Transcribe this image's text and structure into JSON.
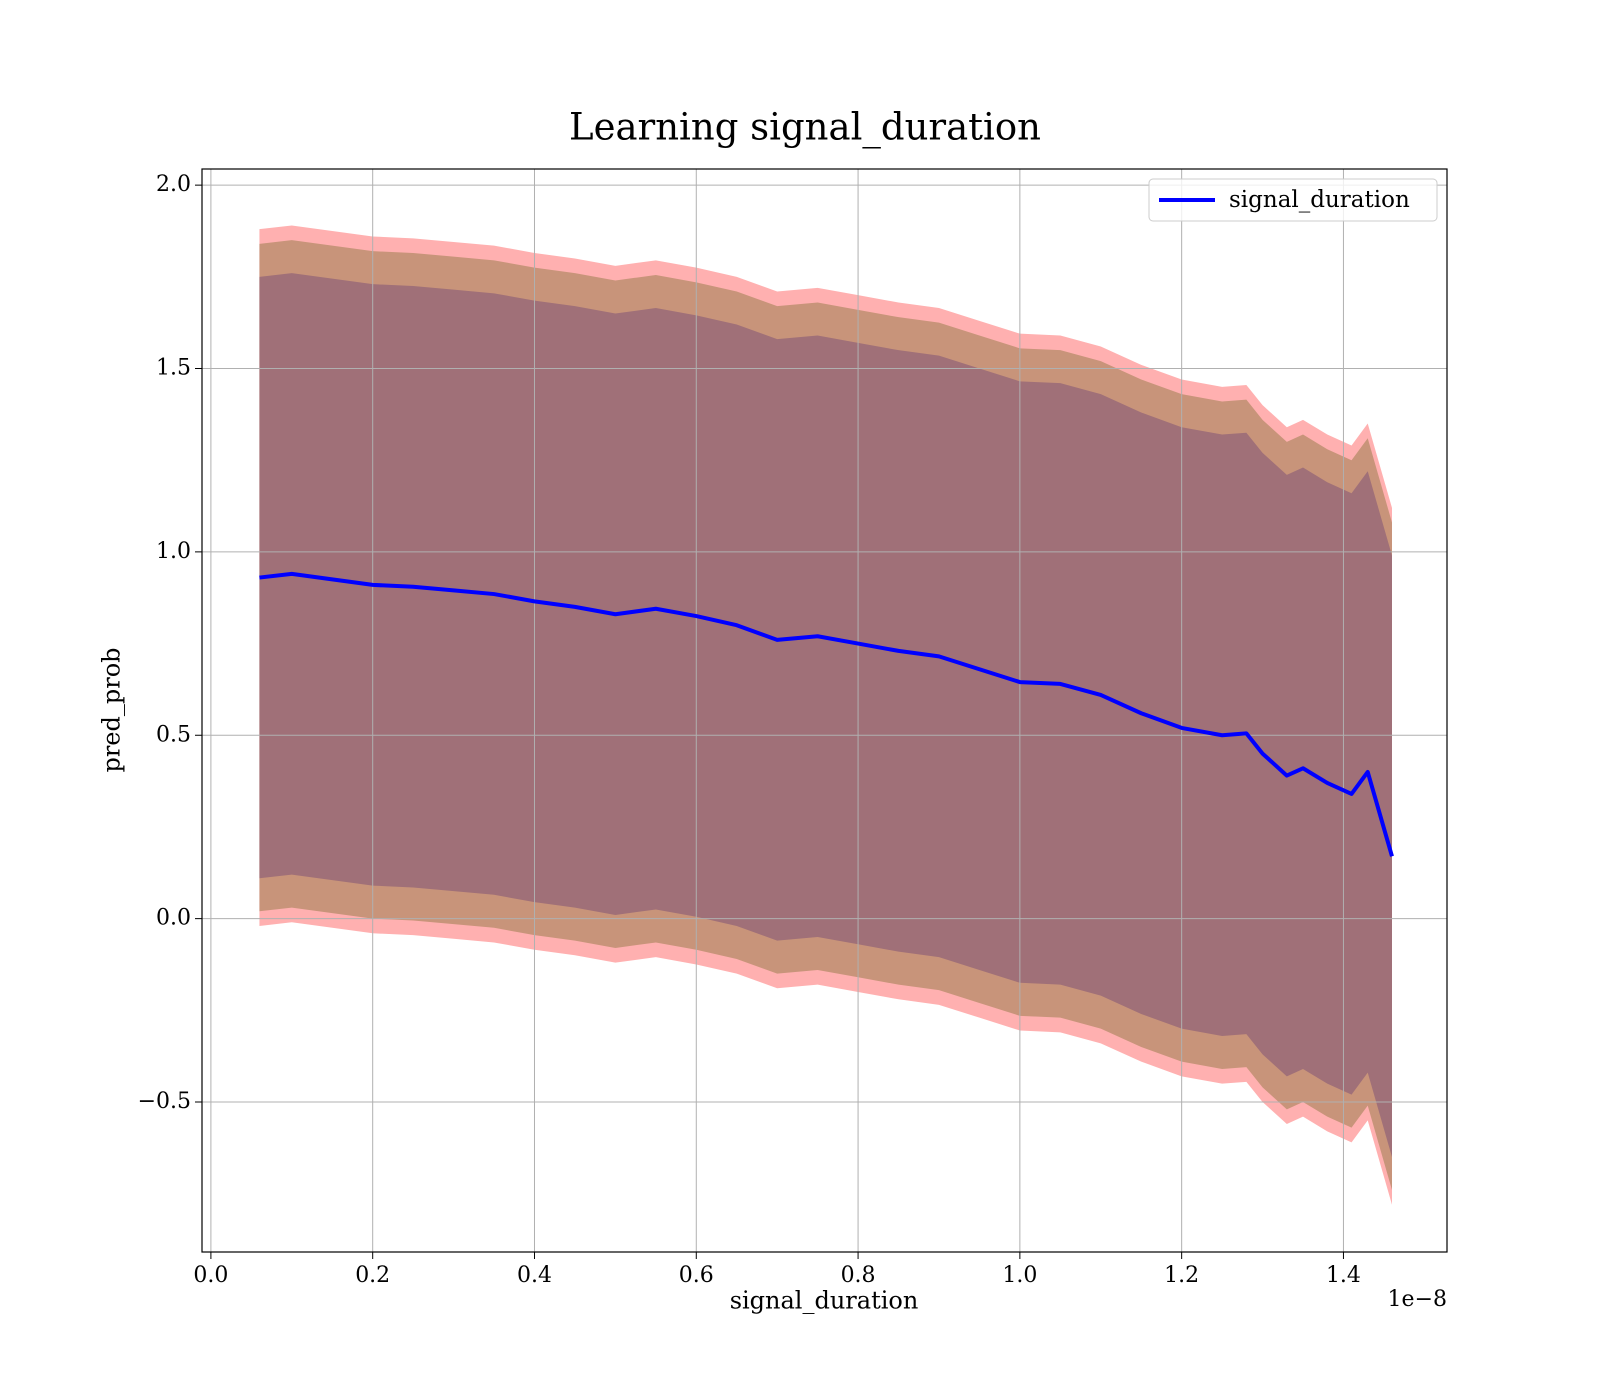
{
  "chart_data": {
    "type": "line",
    "title": "Learning signal_duration",
    "xlabel": "signal_duration",
    "ylabel": "pred_prob",
    "x_offset_label": "1e−8",
    "x": [
      0.06,
      0.1,
      0.15,
      0.2,
      0.25,
      0.3,
      0.35,
      0.4,
      0.45,
      0.5,
      0.55,
      0.6,
      0.65,
      0.7,
      0.75,
      0.8,
      0.85,
      0.9,
      0.95,
      1.0,
      1.05,
      1.1,
      1.15,
      1.2,
      1.25,
      1.28,
      1.3,
      1.33,
      1.35,
      1.38,
      1.41,
      1.43,
      1.46
    ],
    "series": [
      {
        "name": "signal_duration",
        "color": "#0000ff",
        "values": [
          0.93,
          0.94,
          0.925,
          0.91,
          0.905,
          0.895,
          0.885,
          0.865,
          0.85,
          0.83,
          0.845,
          0.825,
          0.8,
          0.76,
          0.77,
          0.75,
          0.73,
          0.715,
          0.68,
          0.645,
          0.64,
          0.61,
          0.56,
          0.52,
          0.5,
          0.505,
          0.45,
          0.39,
          0.41,
          0.37,
          0.34,
          0.4,
          0.17
        ]
      }
    ],
    "bands": [
      {
        "color": "#ffb0b0",
        "error": 0.95
      },
      {
        "color": "#c8947a",
        "error": 0.91
      },
      {
        "color": "#a07078",
        "error": 0.82
      }
    ],
    "xlim": [
      -0.011,
      1.528
    ],
    "ylim": [
      -0.909,
      2.044
    ],
    "xticks": [
      {
        "value": 0,
        "label": "0.0"
      },
      0.2,
      0.4,
      0.6,
      0.8,
      {
        "value": 1,
        "label": "1.0"
      },
      1.2,
      1.4
    ],
    "yticks": [
      {
        "value": -0.5,
        "label": "−0.5"
      },
      {
        "value": 0,
        "label": "0.0"
      },
      0.5,
      {
        "value": 1,
        "label": "1.0"
      },
      1.5,
      {
        "value": 2,
        "label": "2.0"
      }
    ],
    "grid": true,
    "legend": "upper right"
  }
}
